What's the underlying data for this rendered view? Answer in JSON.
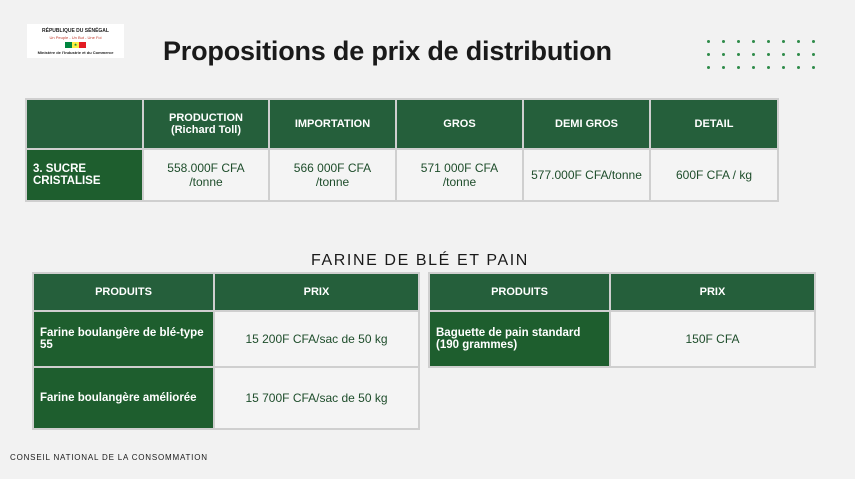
{
  "logo": {
    "country": "RÉPUBLIQUE DU SÉNÉGAL",
    "motto": "Un Peuple - Un But - Une Foi",
    "ministry": "Ministère de l'Industrie et du Commerce",
    "flag_colors": [
      "#00853f",
      "#fdef42",
      "#e31b23"
    ]
  },
  "title": "Propositions de prix de distribution",
  "table1": {
    "headers": [
      "",
      "PRODUCTION (Richard Toll)",
      "IMPORTATION",
      "GROS",
      "DEMI GROS",
      "DETAIL"
    ],
    "headers_split": {
      "production_line1": "PRODUCTION",
      "production_line2": "(Richard Toll)"
    },
    "row": {
      "label": "3. SUCRE CRISTALISE",
      "values": [
        "558.000F CFA /tonne",
        "566 000F CFA /tonne",
        "571 000F CFA /tonne",
        "577.000F CFA/tonne",
        "600F CFA / kg"
      ]
    }
  },
  "section_title": "FARINE DE BLÉ ET PAIN",
  "table2": {
    "headers": [
      "PRODUITS",
      "PRIX"
    ],
    "rows": [
      {
        "product": "Farine boulangère de blé-type 55",
        "price": "15 200F CFA/sac de 50 kg"
      },
      {
        "product": "Farine boulangère améliorée",
        "price": "15 700F CFA/sac de 50 kg"
      }
    ]
  },
  "table3": {
    "headers": [
      "PRODUITS",
      "PRIX"
    ],
    "rows": [
      {
        "product": "Baguette de pain standard (190 grammes)",
        "price": "150F CFA"
      }
    ]
  },
  "footer": "CONSEIL NATIONAL DE LA CONSOMMATION",
  "colors": {
    "header_green": "#255f3b",
    "label_green": "#1e5e2e",
    "text_green": "#1e4d2b",
    "dot_green": "#2f8c4a"
  }
}
